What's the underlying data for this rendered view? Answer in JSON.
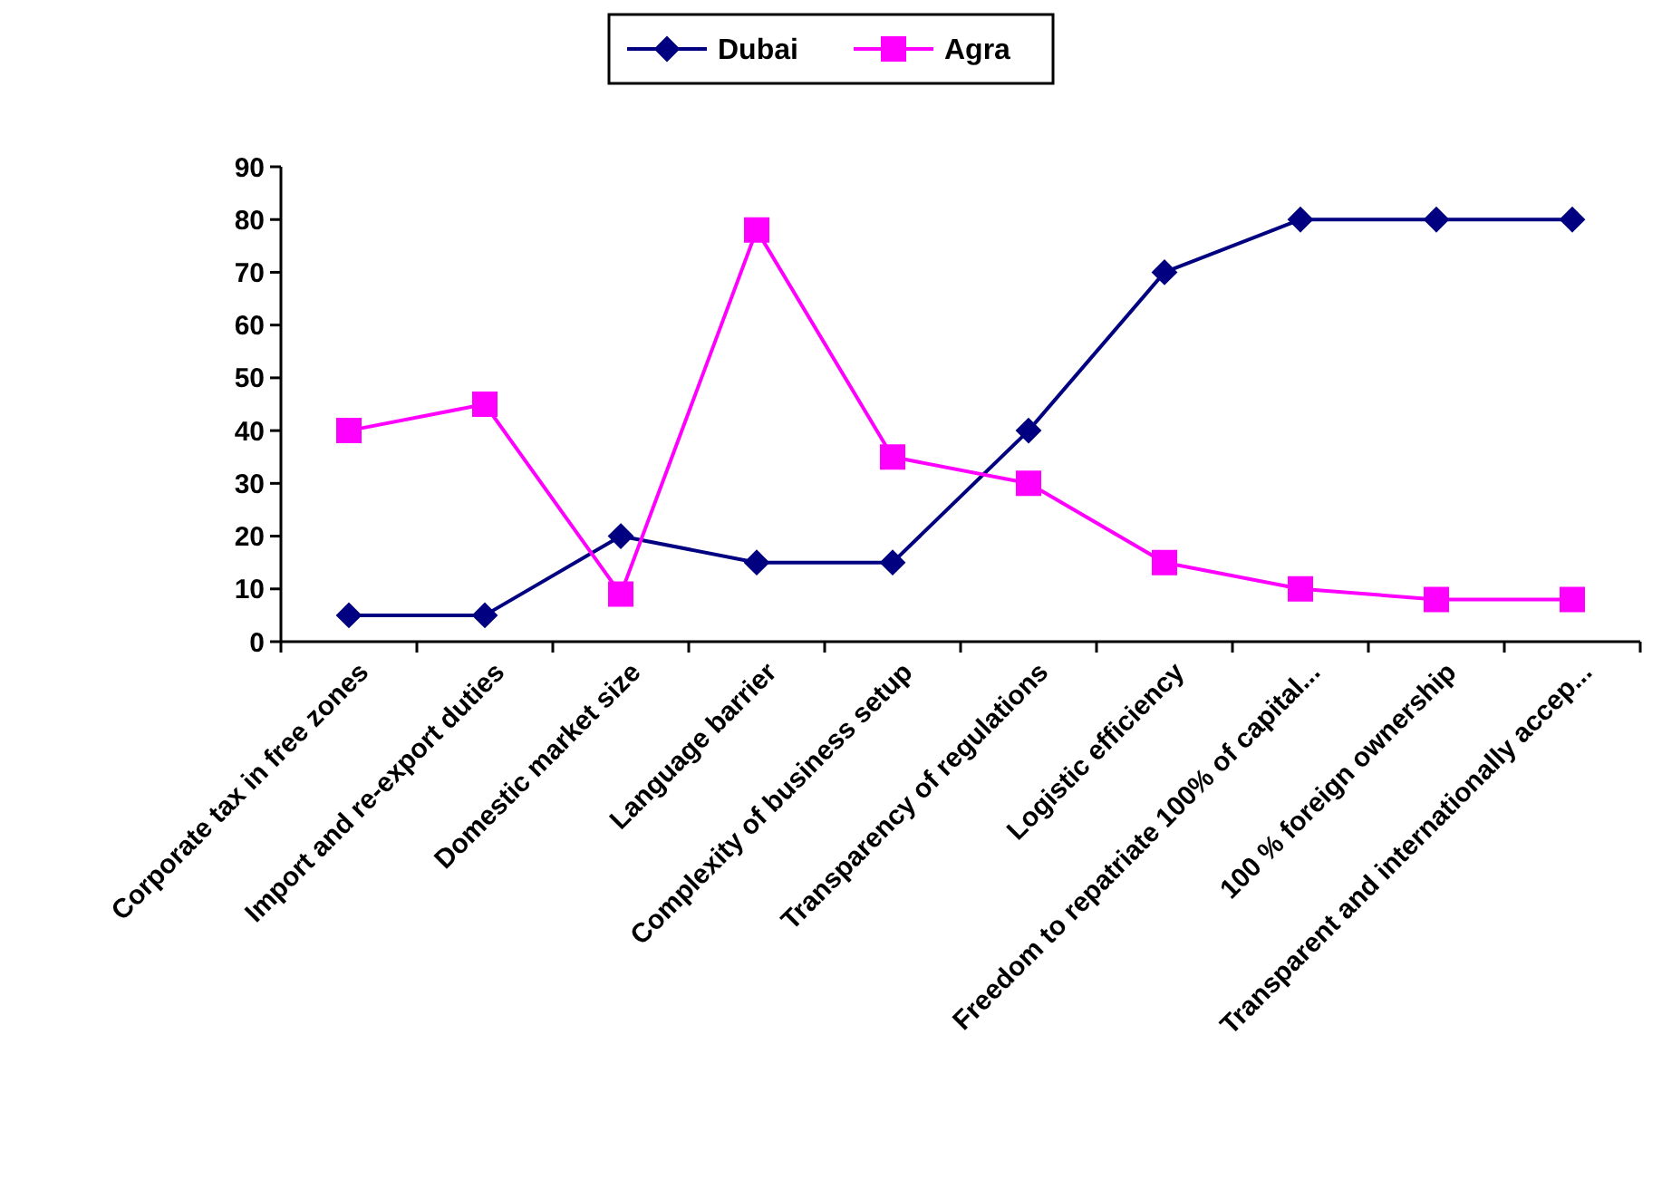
{
  "chart_data": {
    "type": "line",
    "categories": [
      "Corporate tax in free zones",
      "Import and re-export duties",
      "Domestic market size",
      "Language barrier",
      "Complexity of business setup",
      "Transparency of regulations",
      "Logistic efficiency",
      "Freedom to repatriate 100% of capital...",
      "100 % foreign ownership",
      "Transparent and internationally accep..."
    ],
    "series": [
      {
        "name": "Dubai",
        "color": "#000080",
        "marker": "diamond",
        "values": [
          5,
          5,
          20,
          15,
          15,
          40,
          70,
          80,
          80,
          80
        ]
      },
      {
        "name": "Agra",
        "color": "#ff00ff",
        "marker": "square",
        "values": [
          40,
          45,
          9,
          78,
          35,
          30,
          15,
          10,
          8,
          8
        ]
      }
    ],
    "ylim": [
      0,
      90
    ],
    "yticks": [
      0,
      10,
      20,
      30,
      40,
      50,
      60,
      70,
      80,
      90
    ],
    "grid": false,
    "legend": "top",
    "line_style": "solid"
  }
}
